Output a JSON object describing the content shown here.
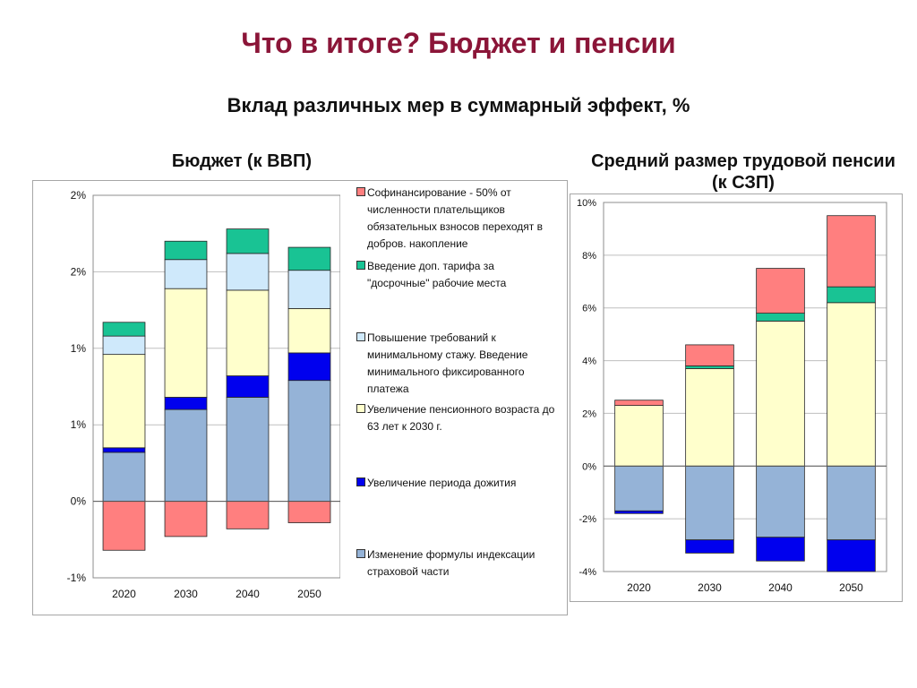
{
  "slide": {
    "title": "Что в итоге? Бюджет и пенсии",
    "subtitle": "Вклад различных мер в суммарный эффект, %"
  },
  "legend": [
    {
      "key": "cofinancing",
      "label": "Софинансирование - 50% от численности плательщиков обязательных взносов переходят в добров. накопление",
      "color": "#ff7f7f"
    },
    {
      "key": "extra_tariff",
      "label": "Введение доп. тарифа за \"досрочные\" рабочие места",
      "color": "#19c394"
    },
    {
      "key": "min_tenure",
      "label": "Повышение требований к минимальному стажу. Введение минимального фиксированного платежа",
      "color": "#cfe9fb"
    },
    {
      "key": "retirement_age",
      "label": "Увеличение пенсионного возраста до 63 лет к 2030 г.",
      "color": "#ffffcc"
    },
    {
      "key": "survival_period",
      "label": "Увеличение периода дожития",
      "color": "#0000ee"
    },
    {
      "key": "indexation",
      "label": "Изменение формулы индексации страховой части",
      "color": "#95b3d7"
    }
  ],
  "chart_data": [
    {
      "id": "budget",
      "type": "bar",
      "stacked": true,
      "title": "Бюджет (к ВВП)",
      "categories": [
        "2020",
        "2030",
        "2040",
        "2050"
      ],
      "ylim": [
        -0.5,
        2.0
      ],
      "y_ticks": [
        -0.5,
        0,
        0.5,
        1.0,
        1.5,
        2.0
      ],
      "y_tick_labels": [
        "-1%",
        "0%",
        "1%",
        "1%",
        "2%",
        "2%"
      ],
      "grid": true,
      "series": [
        {
          "key": "indexation",
          "values": [
            0.32,
            0.6,
            0.68,
            0.79
          ]
        },
        {
          "key": "survival_period",
          "values": [
            0.03,
            0.08,
            0.14,
            0.18
          ]
        },
        {
          "key": "retirement_age",
          "values": [
            0.61,
            0.71,
            0.56,
            0.29
          ]
        },
        {
          "key": "min_tenure",
          "values": [
            0.12,
            0.19,
            0.24,
            0.25
          ]
        },
        {
          "key": "extra_tariff",
          "values": [
            0.09,
            0.12,
            0.16,
            0.15
          ]
        },
        {
          "key": "cofinancing",
          "values": [
            -0.32,
            -0.23,
            -0.18,
            -0.14
          ]
        }
      ]
    },
    {
      "id": "pension",
      "type": "bar",
      "stacked": true,
      "title": "Средний размер трудовой пенсии (к СЗП)",
      "categories": [
        "2020",
        "2030",
        "2040",
        "2050"
      ],
      "ylim": [
        -4,
        10
      ],
      "y_ticks": [
        -4,
        -2,
        0,
        2,
        4,
        6,
        8,
        10
      ],
      "y_tick_labels": [
        "-4%",
        "-2%",
        "0%",
        "2%",
        "4%",
        "6%",
        "8%",
        "10%"
      ],
      "grid": true,
      "series": [
        {
          "key": "indexation",
          "values": [
            -1.7,
            -2.8,
            -2.7,
            -2.8
          ]
        },
        {
          "key": "survival_period",
          "values": [
            -0.1,
            -0.5,
            -0.9,
            -1.2
          ]
        },
        {
          "key": "retirement_age",
          "values": [
            2.3,
            3.7,
            5.5,
            6.2
          ]
        },
        {
          "key": "min_tenure",
          "values": [
            0.0,
            0.0,
            0.0,
            0.0
          ]
        },
        {
          "key": "extra_tariff",
          "values": [
            0.0,
            0.1,
            0.3,
            0.6
          ]
        },
        {
          "key": "cofinancing",
          "values": [
            0.2,
            0.8,
            1.7,
            2.7
          ]
        }
      ]
    }
  ]
}
